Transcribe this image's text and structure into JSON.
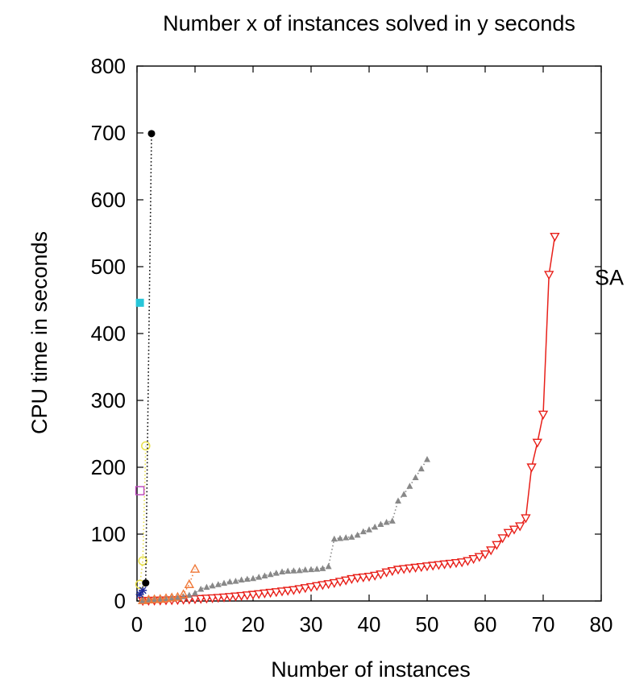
{
  "chart_data": {
    "type": "line",
    "title": "Number x of instances solved in y seconds",
    "xlabel": "Number of instances",
    "ylabel": "CPU time in seconds",
    "xlim": [
      0,
      80
    ],
    "ylim": [
      0,
      800
    ],
    "x_ticks": [
      "0",
      "10",
      "20",
      "30",
      "40",
      "50",
      "60",
      "70",
      "80"
    ],
    "y_ticks": [
      "0",
      "100",
      "200",
      "300",
      "400",
      "500",
      "600",
      "700",
      "800"
    ],
    "grid": false,
    "series": [
      {
        "name": "SA",
        "color": "#e8201a",
        "marker": "triangle-down-open",
        "line": "solid",
        "x": [
          1,
          2,
          3,
          4,
          5,
          6,
          7,
          8,
          9,
          10,
          11,
          12,
          13,
          14,
          15,
          16,
          17,
          18,
          19,
          20,
          21,
          22,
          23,
          24,
          25,
          26,
          27,
          28,
          29,
          30,
          31,
          32,
          33,
          34,
          35,
          36,
          37,
          38,
          39,
          40,
          41,
          42,
          43,
          44,
          45,
          46,
          47,
          48,
          49,
          50,
          51,
          52,
          53,
          54,
          55,
          56,
          57,
          58,
          59,
          60,
          61,
          62,
          63,
          64,
          65,
          66,
          67,
          68,
          69,
          70,
          71,
          72
        ],
        "y": [
          0.3,
          0.5,
          0.7,
          0.9,
          1.1,
          1.3,
          1.6,
          2,
          2.4,
          2.8,
          3.3,
          3.8,
          4.3,
          4.9,
          5.5,
          6.2,
          7,
          7.8,
          8.6,
          9.5,
          10.5,
          11.5,
          12.5,
          13.5,
          14.5,
          15.5,
          16.5,
          18,
          19.5,
          21,
          22.5,
          24,
          25.5,
          27,
          29,
          31,
          33,
          34.5,
          35.5,
          36.5,
          38,
          40,
          43,
          45,
          47,
          48,
          49,
          50,
          51,
          52,
          53,
          54,
          55,
          56,
          57,
          58,
          60,
          63,
          66,
          70,
          76,
          84,
          94,
          102,
          107,
          112,
          124,
          200,
          237,
          279,
          488,
          545
        ]
      },
      {
        "name": "",
        "color": "#888888",
        "marker": "triangle-up-filled",
        "line": "dotted",
        "x": [
          1,
          2,
          3,
          4,
          5,
          6,
          7,
          8,
          9,
          10,
          11,
          12,
          13,
          14,
          15,
          16,
          17,
          18,
          19,
          20,
          21,
          22,
          23,
          24,
          25,
          26,
          27,
          28,
          29,
          30,
          31,
          32,
          33,
          34,
          35,
          36,
          37,
          38,
          39,
          40,
          41,
          42,
          43,
          44,
          45,
          46,
          47,
          48,
          49,
          50
        ],
        "y": [
          1,
          1.5,
          2,
          2.5,
          3,
          4,
          5,
          7,
          9,
          12,
          18,
          21,
          23,
          25,
          27,
          29,
          30,
          32,
          33,
          34,
          36,
          38,
          40,
          42,
          44,
          45,
          45.5,
          46,
          47,
          47.5,
          48,
          49,
          52,
          93,
          94,
          95,
          96,
          99,
          104,
          107,
          111,
          115,
          118,
          120,
          150,
          160,
          172,
          185,
          198,
          212
        ]
      },
      {
        "name": "",
        "color": "#f07a3a",
        "marker": "triangle-up-open",
        "line": "dotted",
        "x": [
          1,
          2,
          3,
          4,
          5,
          6,
          7,
          8,
          9,
          10
        ],
        "y": [
          1,
          2,
          2.5,
          3,
          4,
          5,
          6,
          10,
          25,
          48
        ]
      },
      {
        "name": "",
        "color": "#e8e04a",
        "marker": "circle-open",
        "line": "dotted",
        "x": [
          0.5,
          1,
          1.5
        ],
        "y": [
          25,
          60,
          232
        ]
      },
      {
        "name": "",
        "color": "#bf4fbf",
        "marker": "square-open",
        "line": "none",
        "x": [
          0.5
        ],
        "y": [
          165
        ]
      },
      {
        "name": "",
        "color": "#27c6d9",
        "marker": "square-filled",
        "line": "none",
        "x": [
          0.5
        ],
        "y": [
          446
        ]
      },
      {
        "name": "",
        "color": "#000000",
        "marker": "circle-filled",
        "line": "dotted",
        "x": [
          1.5,
          2.5
        ],
        "y": [
          27,
          699
        ]
      },
      {
        "name": "",
        "color": "#1f2a9a",
        "marker": "star",
        "line": "none",
        "x": [
          0.5,
          1
        ],
        "y": [
          10,
          16
        ]
      }
    ]
  }
}
